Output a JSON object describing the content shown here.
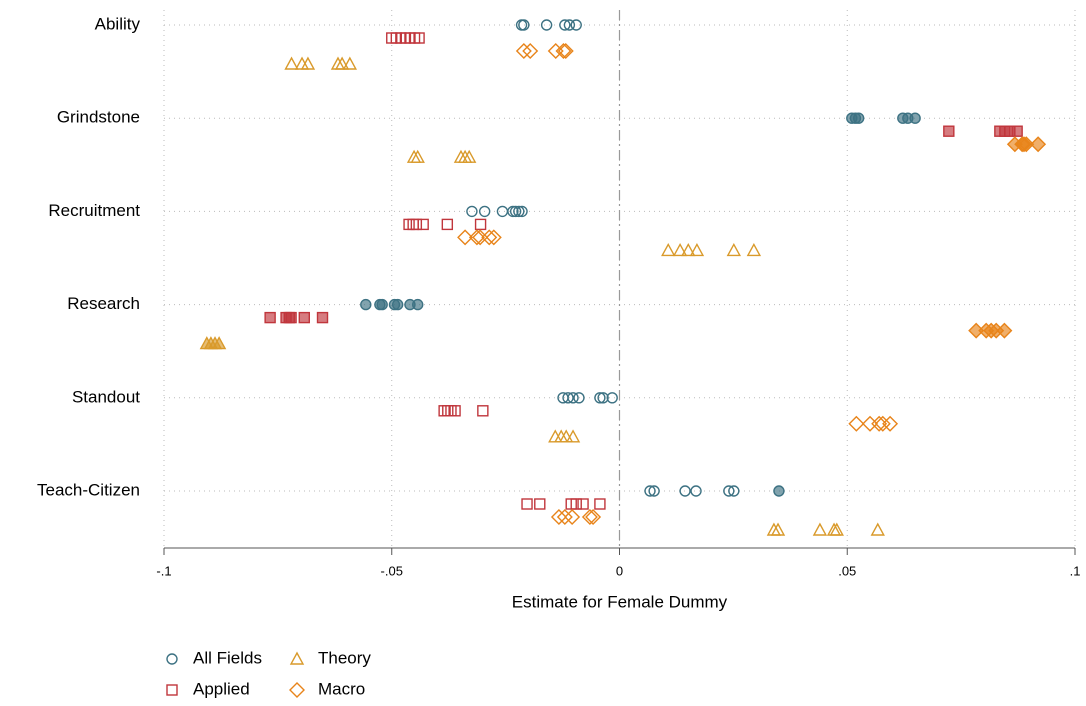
{
  "chart_data": {
    "type": "dot",
    "xlabel": "Estimate for Female Dummy",
    "categories": [
      "Ability",
      "Grindstone",
      "Recruitment",
      "Research",
      "Standout",
      "Teach-Citizen"
    ],
    "xlim": [
      -0.1,
      0.1
    ],
    "xticks": [
      {
        "value": -0.1,
        "label": "-.1"
      },
      {
        "value": -0.05,
        "label": "-.05"
      },
      0,
      {
        "value": 0.05,
        "label": ".05"
      },
      {
        "value": 0.1,
        "label": ".1"
      }
    ],
    "xline": 0,
    "grid": true,
    "legend": "bottom-left",
    "series": [
      {
        "name": "All Fields",
        "color": "#3d7283",
        "marker": "circle",
        "values": [
          [
            -0.0215,
            -0.021,
            -0.016,
            -0.012,
            -0.011,
            -0.0095
          ],
          [
            0.051,
            0.0518,
            0.0525,
            0.0622,
            0.0633,
            0.0649
          ],
          [
            -0.0324,
            -0.0296,
            -0.0257,
            -0.0234,
            -0.0228,
            -0.0221,
            -0.0214
          ],
          [
            -0.0557,
            -0.0526,
            -0.0521,
            -0.0494,
            -0.0487,
            -0.046,
            -0.0443
          ],
          [
            -0.0124,
            -0.0113,
            -0.0102,
            -0.0089,
            -0.0043,
            -0.0036,
            -0.0016
          ],
          [
            0.0067,
            0.0076,
            0.0144,
            0.0168,
            0.024,
            0.0251,
            0.035
          ]
        ],
        "filled": [
          [
            false,
            false,
            false,
            false,
            false,
            false
          ],
          [
            true,
            true,
            true,
            true,
            true,
            true
          ],
          [
            false,
            false,
            false,
            false,
            false,
            false,
            false
          ],
          [
            true,
            true,
            true,
            true,
            true,
            true,
            true
          ],
          [
            false,
            false,
            false,
            false,
            false,
            false,
            false
          ],
          [
            false,
            false,
            false,
            false,
            false,
            false,
            true
          ]
        ]
      },
      {
        "name": "Applied",
        "color": "#c0363c",
        "marker": "square",
        "values": [
          [
            -0.05,
            -0.049,
            -0.048,
            -0.047,
            -0.046,
            -0.045,
            -0.044
          ],
          [
            0.0723,
            0.0835,
            0.0846,
            0.0857,
            0.0873
          ],
          [
            -0.0462,
            -0.0453,
            -0.0446,
            -0.0431,
            -0.0378,
            -0.0305
          ],
          [
            -0.0767,
            -0.0732,
            -0.0725,
            -0.0721,
            -0.0692,
            -0.0652
          ],
          [
            -0.0385,
            -0.0377,
            -0.037,
            -0.0361,
            -0.03
          ],
          [
            -0.0203,
            -0.0175,
            -0.0106,
            -0.0095,
            -0.008,
            -0.0043
          ]
        ],
        "filled": [
          [
            false,
            false,
            false,
            false,
            false,
            false,
            false
          ],
          [
            true,
            true,
            true,
            true,
            true
          ],
          [
            false,
            false,
            false,
            false,
            false,
            false
          ],
          [
            true,
            true,
            true,
            true,
            true,
            true
          ],
          [
            false,
            false,
            false,
            false,
            false
          ],
          [
            false,
            false,
            false,
            false,
            false,
            false
          ]
        ]
      },
      {
        "name": "Theory",
        "color": "#d99a2b",
        "marker": "triangle",
        "values": [
          [
            -0.072,
            -0.0697,
            -0.0684,
            -0.0618,
            -0.0609,
            -0.0592
          ],
          [
            -0.0451,
            -0.0443,
            -0.0348,
            -0.0339,
            -0.033
          ],
          [
            0.0107,
            0.0133,
            0.0151,
            0.017,
            0.0251,
            0.0295
          ],
          [
            -0.0906,
            -0.0897,
            -0.0888,
            -0.0879
          ],
          [
            -0.0141,
            -0.0128,
            -0.0117,
            -0.0102
          ],
          [
            0.0339,
            0.0348,
            0.044,
            0.0471,
            0.0477,
            0.0567
          ]
        ],
        "filled": [
          [
            false,
            false,
            false,
            false,
            false,
            false
          ],
          [
            false,
            false,
            false,
            false,
            false
          ],
          [
            false,
            false,
            false,
            false,
            false,
            false
          ],
          [
            true,
            true,
            true,
            true
          ],
          [
            false,
            false,
            false,
            false
          ],
          [
            false,
            false,
            false,
            false,
            false,
            false
          ]
        ]
      },
      {
        "name": "Macro",
        "color": "#e8841a",
        "marker": "diamond",
        "values": [
          [
            -0.021,
            -0.0196,
            -0.014,
            -0.0123,
            -0.0118
          ],
          [
            0.0868,
            0.0884,
            0.0888,
            0.0893,
            0.0919
          ],
          [
            -0.0339,
            -0.0313,
            -0.0306,
            -0.0286,
            -0.0276
          ],
          [
            0.0783,
            0.0805,
            0.0816,
            0.0827,
            0.0845
          ],
          [
            0.052,
            0.055,
            0.057,
            0.0578,
            0.0594
          ],
          [
            -0.0133,
            -0.012,
            -0.0104,
            -0.0065,
            -0.0058
          ]
        ],
        "filled": [
          [
            false,
            false,
            false,
            false,
            false
          ],
          [
            true,
            true,
            true,
            true,
            true
          ],
          [
            false,
            false,
            false,
            false,
            false
          ],
          [
            true,
            true,
            true,
            true,
            true
          ],
          [
            false,
            false,
            false,
            false,
            false
          ],
          [
            false,
            false,
            false,
            false,
            false
          ]
        ]
      }
    ]
  }
}
